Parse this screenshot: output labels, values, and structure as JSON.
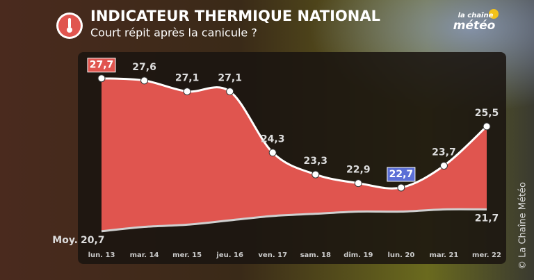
{
  "chart_data": {
    "type": "area",
    "title": "INDICATEUR THERMIQUE NATIONAL",
    "subtitle": "Court répit après la canicule ?",
    "categories": [
      "lun. 13",
      "mar. 14",
      "mer. 15",
      "jeu. 16",
      "ven. 17",
      "sam. 18",
      "dim. 19",
      "lun. 20",
      "mar. 21",
      "mer. 22"
    ],
    "series": [
      {
        "name": null,
        "color": "#e0554f",
        "line_color": "#ffffff",
        "values": [
          27.7,
          27.6,
          27.1,
          27.1,
          24.3,
          23.3,
          22.9,
          22.7,
          23.7,
          25.5
        ],
        "value_labels": [
          "27,7",
          "27,6",
          "27,1",
          "27,1",
          "24,3",
          "23,3",
          "22,9",
          "22,7",
          "23,7",
          "25,5"
        ]
      },
      {
        "name": "Moy.",
        "color": "#d0d0d0",
        "values": [
          20.7,
          20.9,
          21.0,
          21.2,
          21.4,
          21.5,
          21.6,
          21.6,
          21.7,
          21.7
        ],
        "value_labels": [
          "20,7",
          null,
          null,
          null,
          null,
          null,
          null,
          null,
          null,
          "21,7"
        ]
      }
    ],
    "max_label_color": "#e0554f",
    "min_label_color": "#5b6fd6",
    "ylim": [
      19.2,
      28.9
    ],
    "annotations": [
      "© La Chaîne Météo"
    ]
  },
  "logo": {
    "top": "la chaîne",
    "bottom": "météo"
  }
}
